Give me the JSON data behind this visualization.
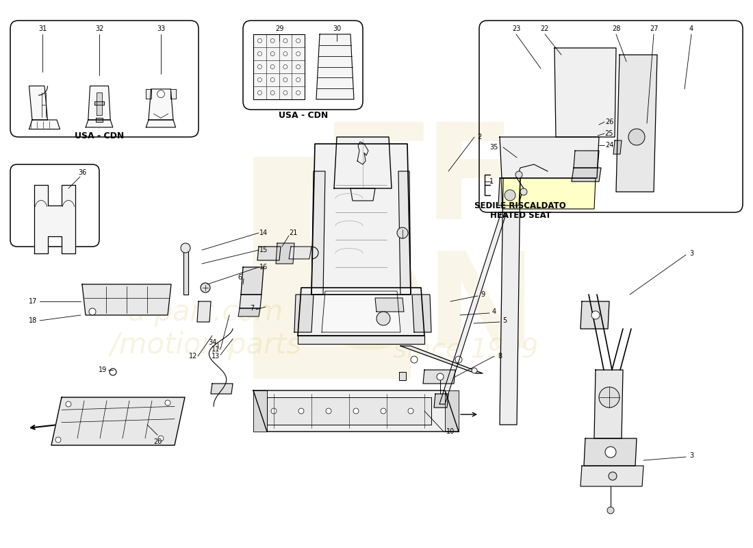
{
  "bg_color": "#ffffff",
  "box1_label": "USA - CDN",
  "box2_label": "USA - CDN",
  "heated_seat_it": "SEDILE RISCALDATO",
  "heated_seat_en": "HEATED SEAT",
  "wm_color": "#c8aa30",
  "wm_alpha": 0.2
}
